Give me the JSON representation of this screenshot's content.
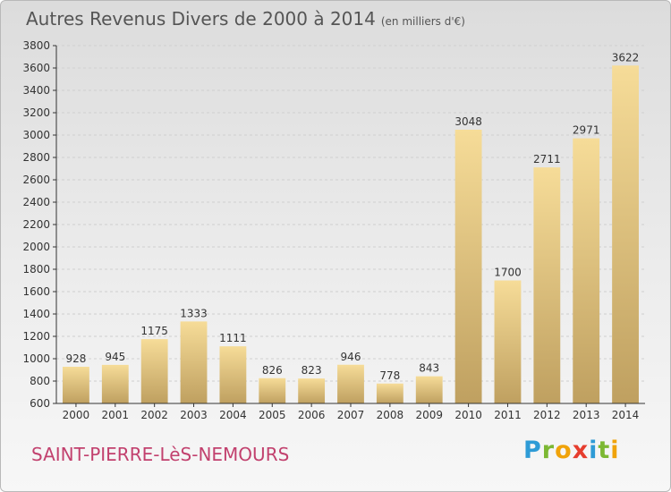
{
  "title": "Autres Revenus Divers de 2000 à 2014",
  "unit": "(en milliers d'€)",
  "city": "SAINT-PIERRE-LèS-NEMOURS",
  "logo": {
    "text": "Proxiti",
    "letters": [
      {
        "ch": "P",
        "color": "#2e9bd6"
      },
      {
        "ch": "r",
        "color": "#7cb833"
      },
      {
        "ch": "o",
        "color": "#f0a30a"
      },
      {
        "ch": "x",
        "color": "#e63d2e"
      },
      {
        "ch": "i",
        "color": "#2e9bd6"
      },
      {
        "ch": "t",
        "color": "#7cb833"
      },
      {
        "ch": "i",
        "color": "#f0a30a"
      }
    ]
  },
  "colors": {
    "bar_top": "#f6dc98",
    "bar_bottom": "#bfa060",
    "axis": "#333333",
    "grid": "#cfcfcf",
    "city": "#c2416e"
  },
  "chart_data": {
    "type": "bar",
    "categories": [
      "2000",
      "2001",
      "2002",
      "2003",
      "2004",
      "2005",
      "2006",
      "2007",
      "2008",
      "2009",
      "2010",
      "2011",
      "2012",
      "2013",
      "2014"
    ],
    "values": [
      928,
      945,
      1175,
      1333,
      1111,
      826,
      823,
      946,
      778,
      843,
      3048,
      1700,
      2711,
      2971,
      3622
    ],
    "ylim": [
      600,
      3800
    ],
    "yticks": [
      600,
      800,
      1000,
      1200,
      1400,
      1600,
      1800,
      2000,
      2200,
      2400,
      2600,
      2800,
      3000,
      3200,
      3400,
      3600,
      3800
    ],
    "grid": true,
    "data_labels": true
  }
}
